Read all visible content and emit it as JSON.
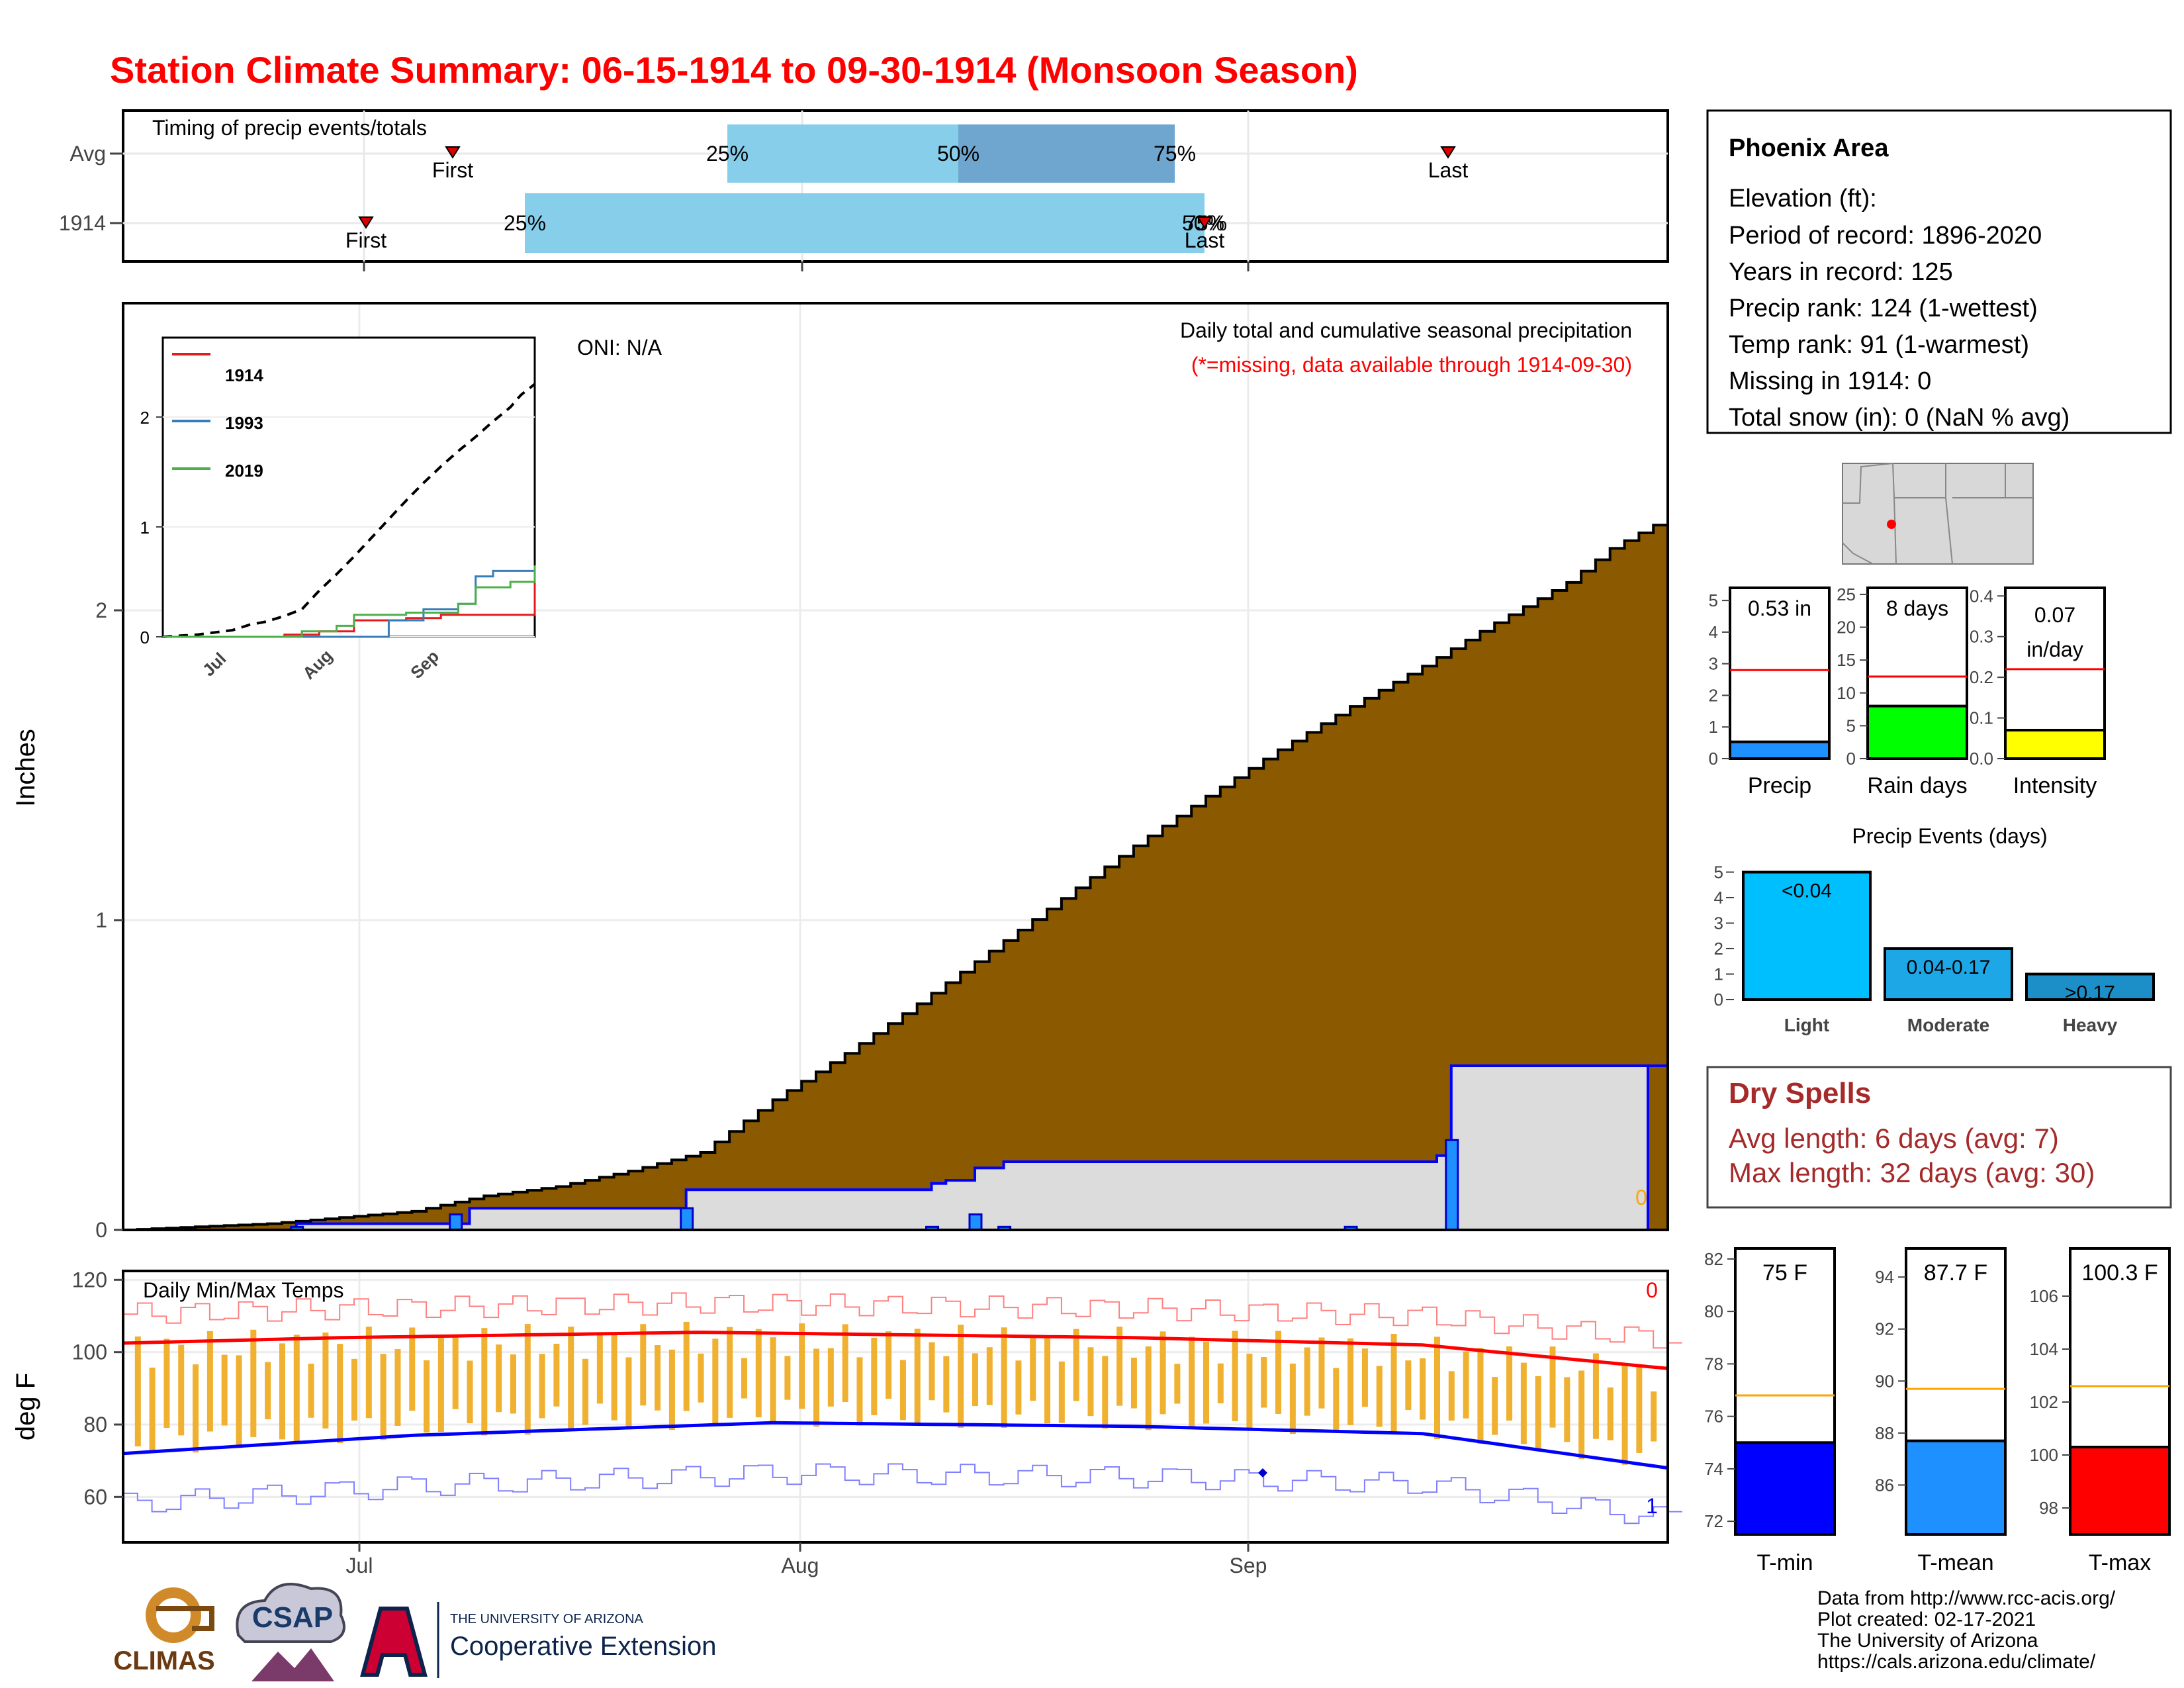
{
  "title": "Station Climate Summary: 06-15-1914 to 09-30-1914 (Monsoon Season)",
  "colors": {
    "title": "#ff0000",
    "accumulation_fill": "#8b5a00",
    "normal_fill": "#dcdcdc",
    "daily_bar": "#1e90ff",
    "temp_bar": "#f0b030",
    "max_line": "#ff0000",
    "min_line": "#0000ff",
    "dryspell_text": "#a52a2a"
  },
  "timing": {
    "title": "Timing of precip events/totals",
    "rows": [
      {
        "label": "Avg",
        "first": "First",
        "last": "Last",
        "p25": "25%",
        "p50": "50%",
        "p75": "75%"
      },
      {
        "label": "1914",
        "first": "First",
        "last": "Last",
        "p25": "25%",
        "p50": "50%",
        "p75": "75%"
      }
    ]
  },
  "precip_panel": {
    "ylabel": "Inches",
    "yticks": [
      "0",
      "1",
      "2"
    ],
    "oni": "ONI: N/A",
    "subtitle": "Daily total and cumulative seasonal precipitation",
    "note": "(*=missing, data available through 1914-09-30)",
    "corner_value": "0"
  },
  "inset": {
    "legend": [
      "1914",
      "1993",
      "2019"
    ],
    "legend_colors": [
      "#e41a1c",
      "#377eb8",
      "#4daf4a"
    ],
    "yticks": [
      "0",
      "1",
      "2"
    ],
    "xticks": [
      "Jul",
      "Aug",
      "Sep"
    ]
  },
  "temp_panel": {
    "title": "Daily Min/Max Temps",
    "ylabel": "deg F",
    "yticks": [
      "60",
      "80",
      "100",
      "120"
    ],
    "max_count": "0",
    "min_count": "1"
  },
  "x_axis": {
    "ticks": [
      "Jul",
      "Aug",
      "Sep"
    ]
  },
  "info_box": {
    "station": "Phoenix Area",
    "lines": [
      "Elevation (ft):",
      "Period of record: 1896-2020",
      "Years in record: 125",
      "Precip rank: 124 (1-wettest)",
      "Temp rank: 91 (1-warmest)",
      "Missing in 1914: 0",
      "Total snow (in): 0 (NaN % avg)"
    ]
  },
  "mini_bars": [
    {
      "label": "Precip",
      "value_text": "0.53 in",
      "value": 0.53,
      "avg": 2.8,
      "ymax": 5.4,
      "ticks": [
        "0",
        "1",
        "2",
        "3",
        "4",
        "5"
      ],
      "color": "#1e90ff"
    },
    {
      "label": "Rain days",
      "value_text": "8 days",
      "value": 8,
      "avg": 12.5,
      "ymax": 26,
      "ticks": [
        "0",
        "5",
        "10",
        "15",
        "20",
        "25"
      ],
      "color": "#00ff00"
    },
    {
      "label": "Intensity",
      "value_text": "0.07 in/day",
      "value": 0.07,
      "avg": 0.22,
      "ymax": 0.42,
      "ticks": [
        "0.0",
        "0.1",
        "0.2",
        "0.3",
        "0.4"
      ],
      "color": "#ffff00"
    }
  ],
  "precip_events": {
    "title": "Precip Events (days)",
    "yticks": [
      "0",
      "1",
      "2",
      "3",
      "4",
      "5"
    ],
    "bars": [
      {
        "category": "Light",
        "label": "<0.04",
        "value": 5,
        "color": "#00bfff"
      },
      {
        "category": "Moderate",
        "label": "0.04-0.17",
        "value": 2,
        "color": "#1ea7e6"
      },
      {
        "category": "Heavy",
        "label": ">0.17",
        "value": 1,
        "color": "#1c8fc8"
      }
    ]
  },
  "dry_spells": {
    "title": "Dry Spells",
    "avg": "Avg length: 6 days (avg: 7)",
    "max": "Max length: 32 days (avg: 30)"
  },
  "temp_bars": [
    {
      "label": "T-min",
      "value_text": "75 F",
      "value": 75.0,
      "avg": 76.8,
      "ymin": 71.5,
      "ymax": 82.4,
      "ticks": [
        "72",
        "74",
        "76",
        "78",
        "80",
        "82"
      ],
      "color": "#0000ff"
    },
    {
      "label": "T-mean",
      "value_text": "87.7 F",
      "value": 87.7,
      "avg": 89.7,
      "ymin": 84.1,
      "ymax": 95.1,
      "ticks": [
        "86",
        "88",
        "90",
        "92",
        "94"
      ],
      "color": "#1e90ff"
    },
    {
      "label": "T-max",
      "value_text": "100.3 F",
      "value": 100.3,
      "avg": 102.6,
      "ymin": 97.0,
      "ymax": 107.8,
      "ticks": [
        "98",
        "100",
        "102",
        "104",
        "106"
      ],
      "color": "#ff0000"
    }
  ],
  "footer": {
    "logos": [
      "CLIMAS",
      "CSAP",
      "THE UNIVERSITY OF ARIZONA",
      "Cooperative Extension"
    ],
    "credits": [
      "Data from http://www.rcc-acis.org/",
      "Plot created: 02-17-2021",
      "The University of Arizona",
      "https://cals.arizona.edu/climate/"
    ]
  },
  "chart_data": [
    {
      "type": "area",
      "title": "Daily total and cumulative seasonal precipitation",
      "ylabel": "Inches",
      "x_start": "1914-06-15",
      "x_end": "1914-09-30",
      "ylim": [
        0,
        3
      ],
      "cumulative_normal_anchor_points": [
        [
          0,
          0
        ],
        [
          5,
          0.01
        ],
        [
          10,
          0.02
        ],
        [
          15,
          0.04
        ],
        [
          20,
          0.06
        ],
        [
          25,
          0.11
        ],
        [
          30,
          0.14
        ],
        [
          35,
          0.19
        ],
        [
          40,
          0.25
        ],
        [
          45,
          0.42
        ],
        [
          50,
          0.57
        ],
        [
          55,
          0.73
        ],
        [
          60,
          0.9
        ],
        [
          65,
          1.07
        ],
        [
          70,
          1.24
        ],
        [
          75,
          1.4
        ],
        [
          80,
          1.55
        ],
        [
          85,
          1.69
        ],
        [
          90,
          1.82
        ],
        [
          95,
          1.96
        ],
        [
          100,
          2.09
        ],
        [
          103,
          2.2
        ],
        [
          107,
          2.3
        ]
      ],
      "cumulative_1914_steps": [
        [
          0,
          0
        ],
        [
          12,
          0.02
        ],
        [
          23,
          0.02
        ],
        [
          24,
          0.07
        ],
        [
          38,
          0.07
        ],
        [
          39,
          0.13
        ],
        [
          56,
          0.15
        ],
        [
          57,
          0.16
        ],
        [
          59,
          0.2
        ],
        [
          61,
          0.22
        ],
        [
          91,
          0.24
        ],
        [
          92,
          0.53
        ],
        [
          107,
          0.53
        ]
      ],
      "daily_1914_bars": [
        [
          12,
          0.01
        ],
        [
          23,
          0.05
        ],
        [
          39,
          0.07
        ],
        [
          56,
          0.01
        ],
        [
          59,
          0.05
        ],
        [
          61,
          0.01
        ],
        [
          85,
          0.01
        ],
        [
          92,
          0.29
        ]
      ]
    },
    {
      "type": "line",
      "title": "Daily Min/Max Temps",
      "ylabel": "deg F",
      "ylim": [
        50,
        125
      ],
      "series": [
        {
          "name": "",
          "values_note": "",
          "anchor_points": [
            [
              0,
              102.5
            ],
            [
              15,
              104
            ],
            [
              40,
              105.5
            ],
            [
              70,
              104
            ],
            [
              90,
              102
            ],
            [
              107,
              95.5
            ]
          ]
        },
        {
          "name": "",
          "anchor_points": [
            [
              0,
              72
            ],
            [
              20,
              77
            ],
            [
              45,
              80.5
            ],
            [
              70,
              79.5
            ],
            [
              90,
              77.5
            ],
            [
              107,
              68
            ]
          ]
        }
      ]
    }
  ]
}
